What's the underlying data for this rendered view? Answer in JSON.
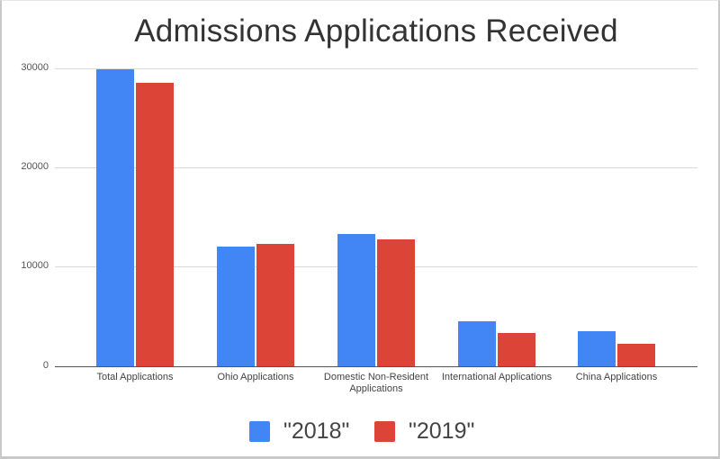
{
  "chart_data": {
    "type": "bar",
    "title": "Admissions Applications Received",
    "xlabel": "",
    "ylabel": "",
    "categories": [
      "Total Applications",
      "Ohio Applications",
      "Domestic Non-Resident Applications",
      "International Applications",
      "China Applications"
    ],
    "series": [
      {
        "name": "\"2018\"",
        "color": "#4285F4",
        "values": [
          30000,
          12050,
          13400,
          4520,
          3570
        ]
      },
      {
        "name": "\"2019\"",
        "color": "#DB4437",
        "values": [
          28600,
          12400,
          12850,
          3340,
          2240
        ]
      }
    ],
    "ylim": [
      0,
      30000
    ],
    "yticks": [
      "0",
      "10000",
      "20000",
      "30000"
    ],
    "grid": true,
    "legend_position": "bottom"
  },
  "title": "Admissions Applications Received",
  "y_axis": {
    "ticks": [
      "30000",
      "20000",
      "10000",
      "0"
    ]
  },
  "x_axis": {
    "labels": [
      "Total Applications",
      "Ohio Applications",
      "Domestic Non-Resident\nApplications",
      "International Applications",
      "China Applications"
    ]
  },
  "legend": {
    "items": [
      {
        "label": "\"2018\"",
        "color": "#4285F4"
      },
      {
        "label": "\"2019\"",
        "color": "#DB4437"
      }
    ]
  }
}
